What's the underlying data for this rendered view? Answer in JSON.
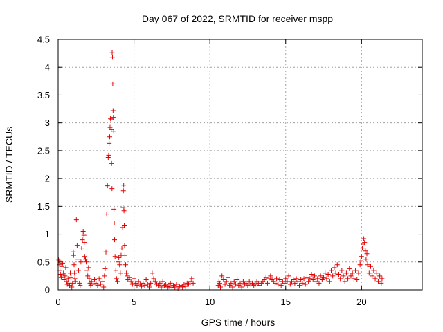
{
  "chart_data": {
    "type": "scatter",
    "title": "Day 067 of 2022, SRMTID for receiver mspp",
    "xlabel": "GPS time / hours",
    "ylabel": "SRMTID / TECUs",
    "xlim": [
      0,
      24
    ],
    "ylim": [
      0,
      4.5
    ],
    "xticks": [
      0,
      5,
      10,
      15,
      20
    ],
    "yticks": [
      0,
      0.5,
      1,
      1.5,
      2,
      2.5,
      3,
      3.5,
      4,
      4.5
    ],
    "xtick_labels": [
      "0",
      "5",
      "10",
      "15",
      "20"
    ],
    "ytick_labels": [
      "0",
      "0.5",
      "1",
      "1.5",
      "2",
      "2.5",
      "3",
      "3.5",
      "4",
      "4.5"
    ],
    "grid": true,
    "marker": "+",
    "series_color": "#e00000",
    "series": [
      {
        "name": "mspp",
        "points": [
          [
            0.02,
            0.55
          ],
          [
            0.05,
            0.52
          ],
          [
            0.1,
            0.45
          ],
          [
            0.12,
            0.35
          ],
          [
            0.15,
            0.28
          ],
          [
            0.2,
            0.22
          ],
          [
            0.25,
            0.42
          ],
          [
            0.3,
            0.48
          ],
          [
            0.35,
            0.3
          ],
          [
            0.4,
            0.18
          ],
          [
            0.45,
            0.25
          ],
          [
            0.5,
            0.4
          ],
          [
            0.55,
            0.15
          ],
          [
            0.6,
            0.1
          ],
          [
            0.65,
            0.2
          ],
          [
            0.7,
            0.12
          ],
          [
            0.75,
            0.08
          ],
          [
            0.8,
            0.3
          ],
          [
            0.85,
            0.22
          ],
          [
            0.9,
            0.05
          ],
          [
            0.95,
            0.12
          ],
          [
            1.0,
            0.68
          ],
          [
            1.02,
            0.62
          ],
          [
            1.05,
            0.45
          ],
          [
            1.08,
            0.3
          ],
          [
            1.1,
            0.2
          ],
          [
            1.15,
            0.15
          ],
          [
            1.2,
            1.26
          ],
          [
            1.25,
            0.8
          ],
          [
            1.3,
            0.55
          ],
          [
            1.35,
            0.35
          ],
          [
            1.4,
            0.12
          ],
          [
            1.45,
            0.08
          ],
          [
            1.5,
            0.5
          ],
          [
            1.55,
            0.75
          ],
          [
            1.6,
            0.9
          ],
          [
            1.65,
            1.05
          ],
          [
            1.7,
            0.98
          ],
          [
            1.72,
            0.85
          ],
          [
            1.75,
            0.6
          ],
          [
            1.8,
            0.55
          ],
          [
            1.85,
            0.5
          ],
          [
            1.9,
            0.35
          ],
          [
            1.95,
            0.25
          ],
          [
            2.0,
            0.4
          ],
          [
            2.05,
            0.2
          ],
          [
            2.1,
            0.12
          ],
          [
            2.15,
            0.08
          ],
          [
            2.2,
            0.15
          ],
          [
            2.3,
            0.1
          ],
          [
            2.4,
            0.18
          ],
          [
            2.5,
            0.12
          ],
          [
            2.6,
            0.08
          ],
          [
            2.7,
            0.2
          ],
          [
            2.8,
            0.1
          ],
          [
            2.9,
            0.15
          ],
          [
            3.0,
            0.05
          ],
          [
            3.05,
            0.25
          ],
          [
            3.1,
            0.38
          ],
          [
            3.15,
            0.68
          ],
          [
            3.2,
            1.36
          ],
          [
            3.25,
            1.87
          ],
          [
            3.3,
            2.38
          ],
          [
            3.33,
            2.42
          ],
          [
            3.36,
            2.63
          ],
          [
            3.4,
            2.75
          ],
          [
            3.42,
            2.92
          ],
          [
            3.45,
            3.08
          ],
          [
            3.48,
            3.06
          ],
          [
            3.5,
            2.88
          ],
          [
            3.52,
            2.27
          ],
          [
            3.55,
            1.82
          ],
          [
            3.56,
            4.26
          ],
          [
            3.58,
            4.18
          ],
          [
            3.6,
            3.7
          ],
          [
            3.62,
            3.22
          ],
          [
            3.64,
            3.1
          ],
          [
            3.66,
            2.85
          ],
          [
            3.68,
            1.45
          ],
          [
            3.7,
            1.2
          ],
          [
            3.72,
            0.9
          ],
          [
            3.75,
            0.6
          ],
          [
            3.8,
            0.35
          ],
          [
            3.85,
            0.2
          ],
          [
            3.9,
            0.15
          ],
          [
            3.95,
            0.5
          ],
          [
            4.0,
            0.58
          ],
          [
            4.05,
            0.45
          ],
          [
            4.1,
            0.3
          ],
          [
            4.15,
            0.62
          ],
          [
            4.2,
            0.75
          ],
          [
            4.25,
            1.12
          ],
          [
            4.28,
            1.48
          ],
          [
            4.3,
            1.78
          ],
          [
            4.32,
            1.88
          ],
          [
            4.34,
            1.42
          ],
          [
            4.36,
            1.15
          ],
          [
            4.38,
            0.8
          ],
          [
            4.4,
            0.62
          ],
          [
            4.45,
            0.45
          ],
          [
            4.5,
            0.3
          ],
          [
            4.55,
            0.25
          ],
          [
            4.6,
            0.18
          ],
          [
            4.7,
            0.22
          ],
          [
            4.8,
            0.15
          ],
          [
            4.9,
            0.1
          ],
          [
            5.0,
            0.2
          ],
          [
            5.1,
            0.12
          ],
          [
            5.2,
            0.08
          ],
          [
            5.3,
            0.15
          ],
          [
            5.4,
            0.1
          ],
          [
            5.5,
            0.06
          ],
          [
            5.6,
            0.12
          ],
          [
            5.7,
            0.08
          ],
          [
            5.8,
            0.18
          ],
          [
            5.9,
            0.1
          ],
          [
            6.0,
            0.05
          ],
          [
            6.1,
            0.12
          ],
          [
            6.2,
            0.3
          ],
          [
            6.3,
            0.2
          ],
          [
            6.4,
            0.15
          ],
          [
            6.5,
            0.1
          ],
          [
            6.6,
            0.08
          ],
          [
            6.7,
            0.12
          ],
          [
            6.8,
            0.05
          ],
          [
            6.9,
            0.15
          ],
          [
            7.0,
            0.08
          ],
          [
            7.1,
            0.1
          ],
          [
            7.2,
            0.05
          ],
          [
            7.3,
            0.06
          ],
          [
            7.4,
            0.12
          ],
          [
            7.5,
            0.04
          ],
          [
            7.6,
            0.08
          ],
          [
            7.7,
            0.05
          ],
          [
            7.8,
            0.1
          ],
          [
            7.9,
            0.03
          ],
          [
            8.0,
            0.06
          ],
          [
            8.1,
            0.08
          ],
          [
            8.2,
            0.05
          ],
          [
            8.3,
            0.1
          ],
          [
            8.4,
            0.06
          ],
          [
            8.5,
            0.12
          ],
          [
            8.6,
            0.1
          ],
          [
            8.7,
            0.15
          ],
          [
            8.8,
            0.2
          ],
          [
            8.9,
            0.12
          ],
          [
            10.55,
            0.08
          ],
          [
            10.6,
            0.15
          ],
          [
            10.65,
            0.12
          ],
          [
            10.7,
            0.05
          ],
          [
            10.8,
            0.25
          ],
          [
            10.9,
            0.18
          ],
          [
            11.0,
            0.1
          ],
          [
            11.1,
            0.15
          ],
          [
            11.2,
            0.22
          ],
          [
            11.3,
            0.08
          ],
          [
            11.4,
            0.12
          ],
          [
            11.5,
            0.05
          ],
          [
            11.6,
            0.15
          ],
          [
            11.7,
            0.1
          ],
          [
            11.8,
            0.18
          ],
          [
            11.9,
            0.08
          ],
          [
            12.0,
            0.12
          ],
          [
            12.1,
            0.05
          ],
          [
            12.2,
            0.15
          ],
          [
            12.3,
            0.1
          ],
          [
            12.4,
            0.12
          ],
          [
            12.5,
            0.08
          ],
          [
            12.6,
            0.15
          ],
          [
            12.7,
            0.1
          ],
          [
            12.8,
            0.12
          ],
          [
            12.9,
            0.08
          ],
          [
            13.0,
            0.1
          ],
          [
            13.1,
            0.15
          ],
          [
            13.2,
            0.12
          ],
          [
            13.3,
            0.08
          ],
          [
            13.4,
            0.12
          ],
          [
            13.5,
            0.15
          ],
          [
            13.6,
            0.18
          ],
          [
            13.7,
            0.22
          ],
          [
            13.8,
            0.12
          ],
          [
            13.9,
            0.2
          ],
          [
            14.0,
            0.25
          ],
          [
            14.1,
            0.18
          ],
          [
            14.2,
            0.15
          ],
          [
            14.3,
            0.12
          ],
          [
            14.4,
            0.2
          ],
          [
            14.5,
            0.1
          ],
          [
            14.6,
            0.18
          ],
          [
            14.7,
            0.08
          ],
          [
            14.8,
            0.15
          ],
          [
            14.9,
            0.12
          ],
          [
            15.0,
            0.2
          ],
          [
            15.1,
            0.15
          ],
          [
            15.2,
            0.25
          ],
          [
            15.3,
            0.1
          ],
          [
            15.4,
            0.15
          ],
          [
            15.5,
            0.18
          ],
          [
            15.6,
            0.12
          ],
          [
            15.7,
            0.2
          ],
          [
            15.8,
            0.15
          ],
          [
            15.9,
            0.08
          ],
          [
            16.0,
            0.18
          ],
          [
            16.1,
            0.12
          ],
          [
            16.2,
            0.2
          ],
          [
            16.3,
            0.1
          ],
          [
            16.4,
            0.22
          ],
          [
            16.5,
            0.15
          ],
          [
            16.6,
            0.2
          ],
          [
            16.7,
            0.28
          ],
          [
            16.8,
            0.18
          ],
          [
            16.9,
            0.25
          ],
          [
            17.0,
            0.15
          ],
          [
            17.1,
            0.2
          ],
          [
            17.2,
            0.12
          ],
          [
            17.3,
            0.25
          ],
          [
            17.4,
            0.18
          ],
          [
            17.5,
            0.22
          ],
          [
            17.6,
            0.3
          ],
          [
            17.7,
            0.2
          ],
          [
            17.8,
            0.28
          ],
          [
            17.9,
            0.15
          ],
          [
            18.0,
            0.35
          ],
          [
            18.1,
            0.25
          ],
          [
            18.2,
            0.4
          ],
          [
            18.3,
            0.3
          ],
          [
            18.4,
            0.45
          ],
          [
            18.5,
            0.28
          ],
          [
            18.6,
            0.2
          ],
          [
            18.7,
            0.35
          ],
          [
            18.8,
            0.25
          ],
          [
            18.9,
            0.15
          ],
          [
            19.0,
            0.3
          ],
          [
            19.1,
            0.2
          ],
          [
            19.2,
            0.38
          ],
          [
            19.3,
            0.25
          ],
          [
            19.4,
            0.3
          ],
          [
            19.5,
            0.2
          ],
          [
            19.6,
            0.35
          ],
          [
            19.7,
            0.18
          ],
          [
            19.8,
            0.3
          ],
          [
            19.9,
            0.45
          ],
          [
            19.95,
            0.52
          ],
          [
            20.0,
            0.6
          ],
          [
            20.05,
            0.75
          ],
          [
            20.1,
            0.82
          ],
          [
            20.15,
            0.92
          ],
          [
            20.2,
            0.85
          ],
          [
            20.25,
            0.7
          ],
          [
            20.3,
            0.55
          ],
          [
            20.35,
            0.65
          ],
          [
            20.4,
            0.45
          ],
          [
            20.5,
            0.3
          ],
          [
            20.6,
            0.42
          ],
          [
            20.7,
            0.25
          ],
          [
            20.8,
            0.35
          ],
          [
            20.9,
            0.2
          ],
          [
            21.0,
            0.3
          ],
          [
            21.1,
            0.15
          ],
          [
            21.2,
            0.25
          ],
          [
            21.3,
            0.12
          ],
          [
            21.35,
            0.2
          ]
        ]
      }
    ]
  }
}
